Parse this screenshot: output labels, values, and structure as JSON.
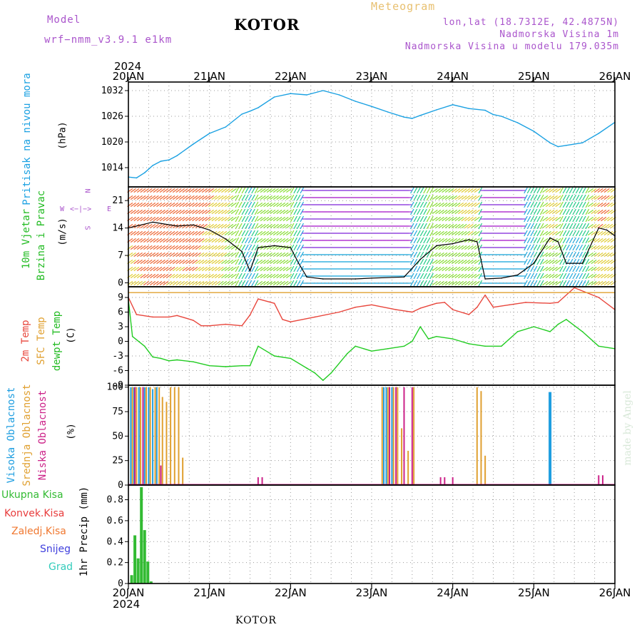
{
  "header": {
    "model_label": "Model",
    "model_value": "wrf−nmm_v3.9.1  e1km",
    "title": "KOTOR",
    "meteogram_label": "Meteogram",
    "lonlat": "lon,lat (18.7312E, 42.4875N)",
    "altitude": "Nadmorska Visina 1m",
    "model_altitude": "Nadmorska Visina u modelu 179.035m"
  },
  "axis": {
    "top_year": "2024",
    "bottom_year": "2024",
    "dates": [
      "20JAN",
      "21JAN",
      "22JAN",
      "23JAN",
      "24JAN",
      "25JAN",
      "26JAN"
    ]
  },
  "footer": {
    "station": "KOTOR",
    "credit": "made by Angel"
  },
  "panels": {
    "pressure": {
      "label": "Pritisak na nivou mora",
      "unit": "(hPa)"
    },
    "wind": {
      "label1": "10m Vjetar",
      "label2": "Brzina i Pravac",
      "unit": "(m/s)",
      "compass_n": "N",
      "compass_s": "S",
      "compass_w": "W",
      "compass_e": "E",
      "compass_glyph": "<−|−>"
    },
    "temp": {
      "label1": "2m Temp",
      "label2": "SFC Temp",
      "label3": "dewpt Temp",
      "unit": "(C)"
    },
    "cloud": {
      "label1": "Visoka Oblacnost",
      "label2": "Srednja Oblacnost",
      "label3": "Niska Oblacnost",
      "unit": "(%)"
    },
    "precip": {
      "unit": "1hr Precip (mm)",
      "legend": [
        "Ukupna Kisa",
        "Konvek.Kisa",
        "Zaledj.Kisa",
        "Snijeg",
        "Grad"
      ]
    }
  },
  "colors": {
    "pressure": "#1ba1e2",
    "temp2m": "#e8463c",
    "sfc": "#e0a030",
    "dewpt": "#22cc22",
    "high_cloud": "#1e9ee0",
    "mid_cloud": "#e0a030",
    "low_cloud": "#cc2288",
    "rain": "#33bb33",
    "conv": "#e83c3c",
    "freezing": "#f07830",
    "snow": "#4040dd",
    "hail": "#33ccbb"
  },
  "chart_data": [
    {
      "type": "line",
      "panel": "pressure",
      "x_unit": "days since 20JAN 00",
      "yticks": [
        1014,
        1020,
        1026,
        1032
      ],
      "ylim": [
        1009.5,
        1034
      ],
      "x": [
        0,
        0.1,
        0.2,
        0.3,
        0.4,
        0.5,
        0.6,
        0.8,
        1.0,
        1.2,
        1.4,
        1.5,
        1.6,
        1.8,
        2.0,
        2.2,
        2.4,
        2.6,
        2.8,
        3.0,
        3.2,
        3.4,
        3.5,
        3.6,
        3.8,
        4.0,
        4.2,
        4.4,
        4.5,
        4.6,
        4.8,
        5.0,
        5.2,
        5.3,
        5.4,
        5.6,
        5.8,
        6.0
      ],
      "y": [
        1011.8,
        1011.6,
        1012.8,
        1014.5,
        1015.5,
        1015.8,
        1016.8,
        1019.5,
        1022,
        1023.5,
        1026.5,
        1027.2,
        1028,
        1030.5,
        1031.3,
        1031,
        1032,
        1031,
        1029.5,
        1028.3,
        1027,
        1025.8,
        1025.5,
        1026.2,
        1027.5,
        1028.7,
        1027.8,
        1027.4,
        1026.4,
        1026,
        1024.5,
        1022.5,
        1019.8,
        1018.9,
        1019.2,
        1019.8,
        1022,
        1024.6
      ]
    },
    {
      "type": "line",
      "panel": "wind",
      "yticks": [
        0,
        7,
        14,
        21
      ],
      "ylim": [
        -1,
        24.5
      ],
      "x": [
        0,
        0.3,
        0.6,
        0.8,
        1.0,
        1.2,
        1.4,
        1.5,
        1.6,
        1.8,
        2.0,
        2.1,
        2.2,
        2.4,
        2.8,
        3.0,
        3.4,
        3.6,
        3.8,
        4.0,
        4.2,
        4.3,
        4.4,
        4.6,
        4.8,
        5.0,
        5.2,
        5.3,
        5.4,
        5.6,
        5.8,
        5.9,
        6.0
      ],
      "y": [
        14,
        15.5,
        14.5,
        14.8,
        13.5,
        11.2,
        8,
        3,
        9,
        9.5,
        9,
        5,
        1.5,
        1,
        1,
        1.2,
        1.5,
        6,
        9.5,
        10,
        11,
        10.5,
        1,
        1.2,
        2,
        5,
        11.5,
        10.5,
        5,
        5,
        14,
        13.5,
        12
      ]
    },
    {
      "type": "line",
      "panel": "temp",
      "yticks": [
        -9,
        -6,
        -3,
        0,
        3,
        6,
        9
      ],
      "ylim": [
        -9,
        11.2
      ],
      "series": [
        {
          "name": "2m Temp",
          "x": [
            0,
            0.1,
            0.3,
            0.5,
            0.6,
            0.8,
            0.9,
            1.0,
            1.2,
            1.4,
            1.5,
            1.6,
            1.8,
            1.9,
            2.0,
            2.3,
            2.6,
            2.8,
            3.0,
            3.3,
            3.5,
            3.6,
            3.8,
            3.9,
            4.0,
            4.2,
            4.3,
            4.4,
            4.5,
            4.7,
            4.9,
            5.2,
            5.3,
            5.5,
            5.8,
            6.0
          ],
          "y": [
            9,
            5.5,
            5,
            5,
            5.3,
            4.3,
            3.2,
            3.2,
            3.5,
            3.2,
            5.4,
            8.7,
            7.8,
            4.5,
            4,
            5,
            6,
            7,
            7.5,
            6.5,
            6,
            6.8,
            7.8,
            8,
            6.5,
            5.5,
            7,
            9.5,
            7,
            7.5,
            8,
            7.8,
            8,
            11,
            9,
            6.5
          ]
        },
        {
          "name": "SFC Temp",
          "x": [
            0,
            6
          ],
          "y": [
            10,
            10
          ]
        },
        {
          "name": "dewpt Temp",
          "x": [
            0,
            0.05,
            0.2,
            0.3,
            0.4,
            0.5,
            0.6,
            0.8,
            1.0,
            1.2,
            1.4,
            1.5,
            1.6,
            1.8,
            2.0,
            2.2,
            2.3,
            2.4,
            2.5,
            2.7,
            2.8,
            3.0,
            3.2,
            3.4,
            3.5,
            3.6,
            3.7,
            3.8,
            4.0,
            4.2,
            4.4,
            4.6,
            4.8,
            5.0,
            5.2,
            5.3,
            5.4,
            5.6,
            5.8,
            6.0
          ],
          "y": [
            8.5,
            1,
            -1,
            -3.2,
            -3.5,
            -4,
            -3.8,
            -4.2,
            -5,
            -5.2,
            -5,
            -5,
            -1,
            -3,
            -3.5,
            -5.5,
            -6.5,
            -8,
            -6.5,
            -2.5,
            -1,
            -2,
            -1.5,
            -1,
            0,
            3,
            0.5,
            1,
            0.5,
            -0.5,
            -1,
            -1,
            2,
            3,
            2,
            3.5,
            4.5,
            2,
            -1,
            -1.5
          ]
        }
      ]
    },
    {
      "type": "bar",
      "panel": "cloud",
      "yticks": [
        0,
        25,
        50,
        75,
        100
      ],
      "ylim": [
        0,
        102
      ],
      "series": [
        {
          "name": "Visoka Oblacnost",
          "x": [
            0.03,
            0.07,
            0.13,
            0.2,
            0.25,
            0.3,
            0.35,
            3.15,
            3.18,
            3.25,
            5.2
          ],
          "y": [
            100,
            100,
            100,
            100,
            100,
            98,
            100,
            100,
            100,
            100,
            95
          ]
        },
        {
          "name": "Srednja Oblacnost",
          "x": [
            0.05,
            0.1,
            0.15,
            0.22,
            0.27,
            0.33,
            0.38,
            0.42,
            0.47,
            0.52,
            0.57,
            0.62,
            0.67,
            3.13,
            3.2,
            3.27,
            3.32,
            3.37,
            3.45,
            3.52,
            4.3,
            4.35,
            4.4
          ],
          "y": [
            100,
            100,
            100,
            100,
            100,
            100,
            100,
            90,
            85,
            100,
            100,
            100,
            28,
            100,
            100,
            100,
            100,
            58,
            35,
            100,
            100,
            96,
            30
          ]
        },
        {
          "name": "Niska Oblacnost",
          "x": [
            0.08,
            0.18,
            0.4,
            1.6,
            1.65,
            3.22,
            3.3,
            3.4,
            3.5,
            3.85,
            3.9,
            4.0,
            5.8,
            5.85
          ],
          "y": [
            100,
            100,
            20,
            8,
            8,
            100,
            100,
            100,
            100,
            8,
            8,
            8,
            10,
            10
          ]
        }
      ]
    },
    {
      "type": "bar",
      "panel": "precip",
      "yticks": [
        0,
        0.2,
        0.4,
        0.6,
        0.8
      ],
      "ylim": [
        0,
        0.94
      ],
      "series": [
        {
          "name": "Ukupna Kisa",
          "x": [
            0.04,
            0.08,
            0.12,
            0.16,
            0.2,
            0.24,
            0.28
          ],
          "y": [
            0.08,
            0.46,
            0.24,
            0.92,
            0.51,
            0.21,
            0.02
          ]
        }
      ]
    }
  ]
}
